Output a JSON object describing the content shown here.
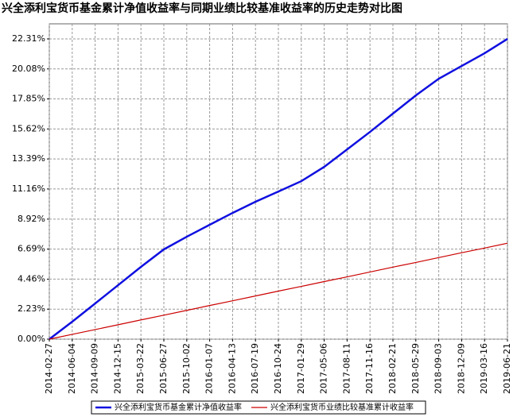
{
  "chart_data": {
    "type": "line",
    "title": "兴全添利宝货币基金累计净值收益率与同期业绩比较基准收益率的历史走势对比图",
    "categories": [
      "2014-02-27",
      "2014-06-04",
      "2014-09-09",
      "2014-12-15",
      "2015-03-22",
      "2015-06-27",
      "2015-10-02",
      "2016-01-07",
      "2016-04-13",
      "2016-07-19",
      "2016-10-24",
      "2017-01-29",
      "2017-05-06",
      "2017-08-11",
      "2017-11-16",
      "2018-02-21",
      "2018-05-29",
      "2018-09-03",
      "2018-12-09",
      "2019-03-16",
      "2019-06-21"
    ],
    "series": [
      {
        "name": "兴全添利宝货币基金累计净值收益率",
        "color": "#1010e0",
        "values": [
          0,
          1.3,
          2.65,
          4.01,
          5.37,
          6.67,
          7.61,
          8.5,
          9.38,
          10.21,
          10.97,
          11.74,
          12.8,
          14.1,
          15.4,
          16.76,
          18.11,
          19.35,
          20.3,
          21.24,
          22.31
        ]
      },
      {
        "name": "兴全添利宝货币业绩比较基准累计收益率",
        "color": "#cc0000",
        "values": [
          0,
          0.36,
          0.71,
          1.07,
          1.43,
          1.78,
          2.14,
          2.5,
          2.85,
          3.21,
          3.57,
          3.92,
          4.28,
          4.63,
          4.99,
          5.35,
          5.7,
          6.06,
          6.42,
          6.77,
          7.13
        ]
      }
    ],
    "ylim": [
      0,
      23.43
    ],
    "yticks": [
      {
        "value": 0,
        "label": "0.00%"
      },
      {
        "value": 2.23,
        "label": "2.23%"
      },
      {
        "value": 4.46,
        "label": "4.46%"
      },
      {
        "value": 6.69,
        "label": "6.69%"
      },
      {
        "value": 8.92,
        "label": "8.92%"
      },
      {
        "value": 11.16,
        "label": "11.16%"
      },
      {
        "value": 13.39,
        "label": "13.39%"
      },
      {
        "value": 15.62,
        "label": "15.62%"
      },
      {
        "value": 17.85,
        "label": "17.85%"
      },
      {
        "value": 20.08,
        "label": "20.08%"
      },
      {
        "value": 22.31,
        "label": "22.31%"
      }
    ],
    "grid": true
  }
}
